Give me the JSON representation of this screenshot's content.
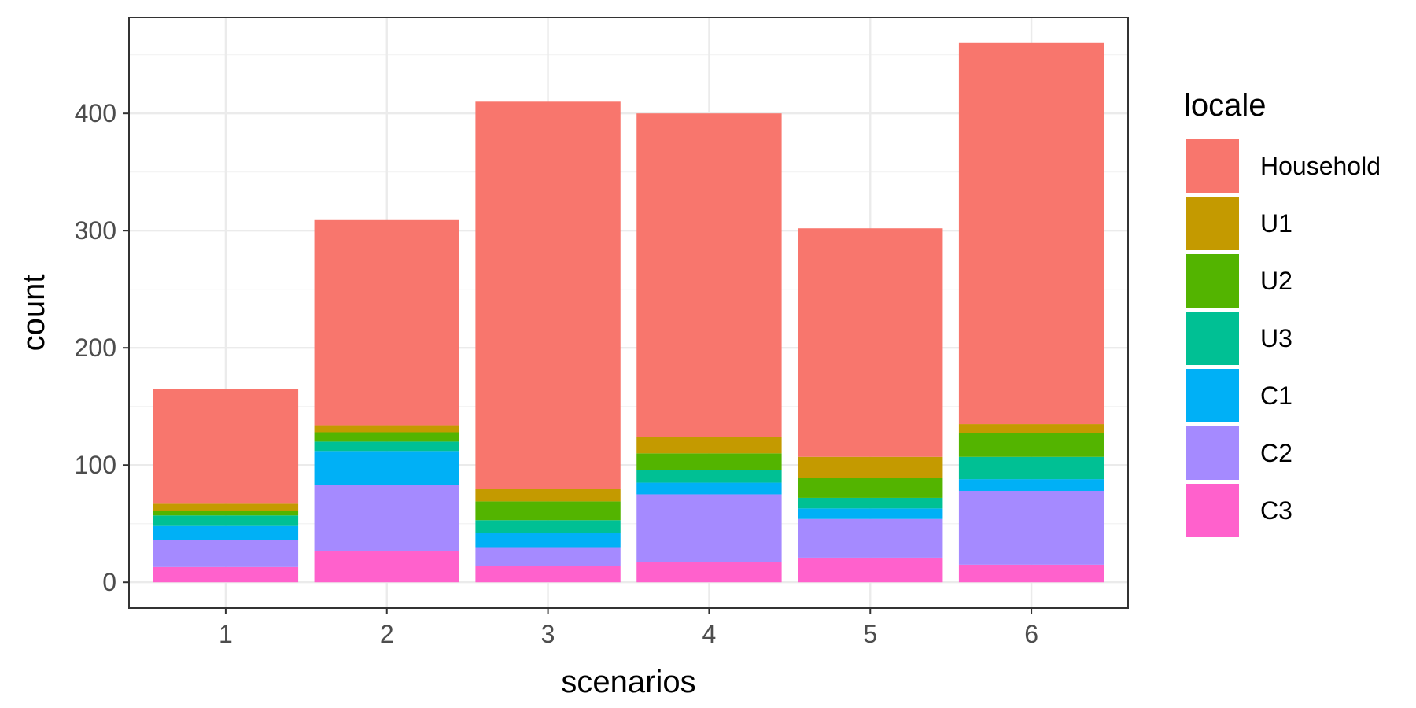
{
  "chart_data": {
    "type": "bar",
    "stacked": true,
    "xlabel": "scenarios",
    "ylabel": "count",
    "categories": [
      "1",
      "2",
      "3",
      "4",
      "5",
      "6"
    ],
    "yticks": [
      0,
      100,
      200,
      300,
      400
    ],
    "ylim": [
      -22,
      482
    ],
    "grid": true,
    "legend": {
      "title": "locale",
      "position": "right"
    },
    "series": [
      {
        "name": "C3",
        "color": "#FF61CC",
        "values": [
          13,
          27,
          14,
          17,
          21,
          15
        ]
      },
      {
        "name": "C2",
        "color": "#A58AFF",
        "values": [
          23,
          56,
          16,
          58,
          33,
          63
        ]
      },
      {
        "name": "C1",
        "color": "#00B0F6",
        "values": [
          12,
          29,
          12,
          10,
          9,
          10
        ]
      },
      {
        "name": "U3",
        "color": "#00C094",
        "values": [
          9,
          8,
          11,
          11,
          9,
          19
        ]
      },
      {
        "name": "U2",
        "color": "#53B400",
        "values": [
          4,
          8,
          16,
          14,
          17,
          20
        ]
      },
      {
        "name": "U1",
        "color": "#C49A00",
        "values": [
          6,
          6,
          11,
          14,
          18,
          8
        ]
      },
      {
        "name": "Household",
        "color": "#F8766D",
        "values": [
          98,
          175,
          330,
          276,
          195,
          325
        ]
      }
    ],
    "legend_order": [
      "Household",
      "U1",
      "U2",
      "U3",
      "C1",
      "C2",
      "C3"
    ]
  }
}
